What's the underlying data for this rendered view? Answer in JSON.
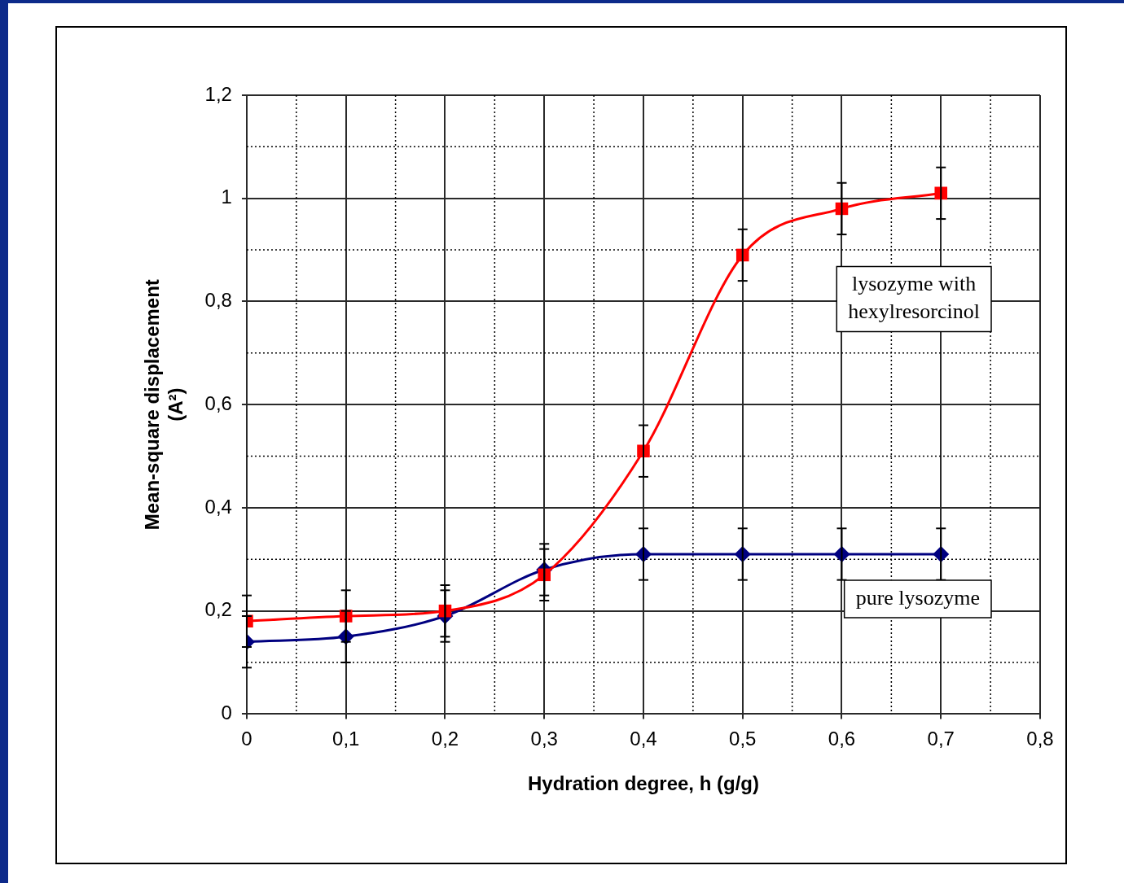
{
  "chart_data": {
    "type": "line",
    "xlabel": "Hydration degree, h (g/g)",
    "ylabel": "Mean-square displacement\n(A²)",
    "x": [
      0,
      0.1,
      0.2,
      0.3,
      0.4,
      0.5,
      0.6,
      0.7
    ],
    "xlim": [
      0,
      0.8
    ],
    "xticks": [
      0,
      {
        "value": 0.1,
        "label": "0,1"
      },
      {
        "value": 0.2,
        "label": "0,2"
      },
      {
        "value": 0.3,
        "label": "0,3"
      },
      {
        "value": 0.4,
        "label": "0,4"
      },
      {
        "value": 0.5,
        "label": "0,5"
      },
      {
        "value": 0.6,
        "label": "0,6"
      },
      {
        "value": 0.7,
        "label": "0,7"
      },
      {
        "value": 0.8,
        "label": "0,8"
      }
    ],
    "ylim": [
      0,
      1.2
    ],
    "yticks": [
      0,
      {
        "value": 0.2,
        "label": "0,2"
      },
      {
        "value": 0.4,
        "label": "0,4"
      },
      {
        "value": 0.6,
        "label": "0,6"
      },
      {
        "value": 0.8,
        "label": "0,8"
      },
      1,
      {
        "value": 1.2,
        "label": "1,2"
      }
    ],
    "grid": true,
    "legend": false,
    "series": [
      {
        "name": "pure lysozyme",
        "color": "#000080",
        "marker": "diamond",
        "values": [
          0.14,
          0.15,
          0.19,
          0.28,
          0.31,
          0.31,
          0.31,
          0.31
        ],
        "errors": [
          0.05,
          0.05,
          0.05,
          0.05,
          0.05,
          0.05,
          0.05,
          0.05
        ]
      },
      {
        "name": "lysozyme with hexylresorcinol",
        "color": "#ff0000",
        "marker": "square",
        "values": [
          0.18,
          0.19,
          0.2,
          0.27,
          0.51,
          0.89,
          0.98,
          1.01
        ],
        "errors": [
          0.05,
          0.05,
          0.05,
          0.05,
          0.05,
          0.05,
          0.05,
          0.05
        ]
      }
    ]
  }
}
